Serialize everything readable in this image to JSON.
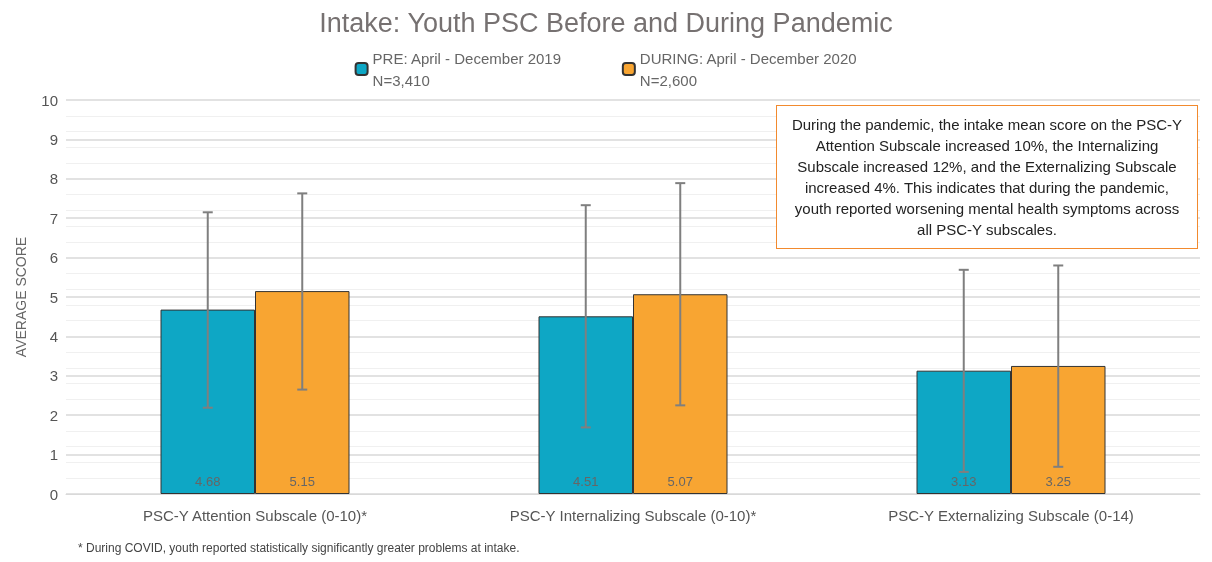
{
  "chart_data": {
    "type": "bar",
    "title": "Intake: Youth PSC Before and During Pandemic",
    "ylabel": "AVERAGE SCORE",
    "categories": [
      "PSC-Y Attention Subscale (0-10)*",
      "PSC-Y Internalizing Subscale (0-10)*",
      "PSC-Y Externalizing Subscale (0-14)"
    ],
    "series": [
      {
        "name": "PRE: April - December 2019\nN=3,410",
        "color": "#0ea7c5",
        "values": [
          4.68,
          4.51,
          3.13
        ],
        "errors": [
          [
            2.19,
            7.15
          ],
          [
            1.69,
            7.33
          ],
          [
            0.56,
            5.69
          ]
        ]
      },
      {
        "name": "DURING: April - December 2020\nN=2,600",
        "color": "#f8a532",
        "values": [
          5.15,
          5.07,
          3.25
        ],
        "errors": [
          [
            2.65,
            7.63
          ],
          [
            2.25,
            7.89
          ],
          [
            0.69,
            5.8
          ]
        ]
      }
    ],
    "ylim": [
      0,
      10
    ],
    "yticks": [
      0,
      1,
      2,
      3,
      4,
      5,
      6,
      7,
      8,
      9,
      10
    ],
    "grid": true,
    "legend": "top",
    "data_labels": true,
    "annotations": [
      "During the pandemic, the intake mean score on the PSC-Y Attention Subscale increased 10%, the Internalizing Subscale increased 12%, and the Externalizing Subscale increased 4%. This indicates that during the pandemic, youth reported worsening mental health symptoms across all PSC-Y subscales.",
      "* During COVID, youth reported statistically significantly greater problems at intake."
    ]
  }
}
